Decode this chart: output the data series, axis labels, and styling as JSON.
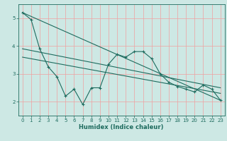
{
  "xlabel": "Humidex (Indice chaleur)",
  "bg_color": "#cde8e4",
  "grid_color": "#f0a0a0",
  "line_color": "#1e6b5e",
  "xlim": [
    -0.5,
    23.5
  ],
  "ylim": [
    1.5,
    5.5
  ],
  "yticks": [
    2,
    3,
    4,
    5
  ],
  "xticks": [
    0,
    1,
    2,
    3,
    4,
    5,
    6,
    7,
    8,
    9,
    10,
    11,
    12,
    13,
    14,
    15,
    16,
    17,
    18,
    19,
    20,
    21,
    22,
    23
  ],
  "series1_x": [
    0,
    1,
    2,
    3,
    4,
    5,
    6,
    7,
    8,
    9,
    10,
    11,
    12,
    13,
    14,
    15,
    16,
    17,
    18,
    19,
    20,
    21,
    22,
    23
  ],
  "series1_y": [
    5.2,
    4.95,
    3.9,
    3.25,
    2.9,
    2.2,
    2.45,
    1.9,
    2.5,
    2.5,
    3.35,
    3.7,
    3.6,
    3.8,
    3.8,
    3.55,
    3.0,
    2.7,
    2.55,
    2.45,
    2.35,
    2.6,
    2.45,
    2.05
  ],
  "series2_x": [
    0,
    23
  ],
  "series2_y": [
    5.2,
    2.05
  ],
  "series3_x": [
    0,
    23
  ],
  "series3_y": [
    3.9,
    2.5
  ],
  "series4_x": [
    0,
    23
  ],
  "series4_y": [
    3.6,
    2.3
  ]
}
